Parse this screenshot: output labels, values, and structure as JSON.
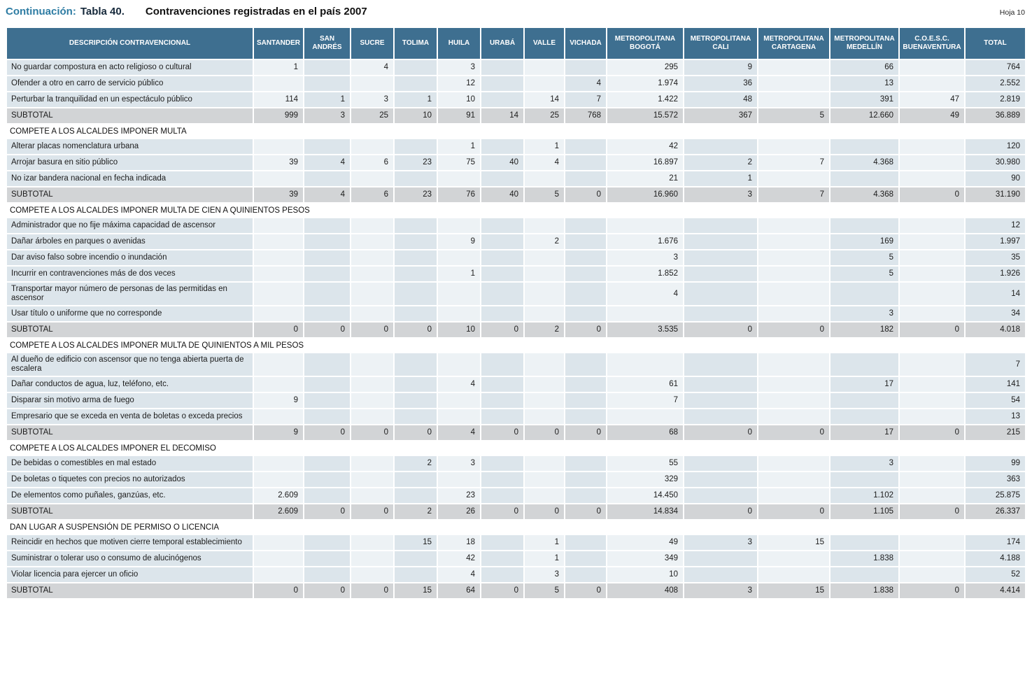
{
  "page": {
    "sheet_label": "Hoja 10"
  },
  "title": {
    "prefix": "Continuación:",
    "table_ref": "Tabla 40.",
    "text": "Contravenciones registradas en el país 2007"
  },
  "colors": {
    "header_bg": "#3e6f90",
    "col_light": "#edf2f5",
    "col_dark": "#dce5eb",
    "subtotal_bg": "#d2d4d6",
    "title_accent": "#2e7ca3"
  },
  "table": {
    "columns": [
      "DESCRIPCIÓN CONTRAVENCIONAL",
      "SANTANDER",
      "SAN ANDRÉS",
      "SUCRE",
      "TOLIMA",
      "HUILA",
      "URABÁ",
      "VALLE",
      "VICHADA",
      "METROPOLITANA BOGOTÁ",
      "METROPOLITANA CALI",
      "METROPOLITANA CARTAGENA",
      "METROPOLITANA MEDELLÍN",
      "C.O.E.S.C. BUENAVENTURA",
      "TOTAL"
    ],
    "sections": [
      {
        "title": "",
        "rows": [
          {
            "label": "No guardar compostura en acto religioso o cultural",
            "values": [
              "1",
              "",
              "4",
              "",
              "3",
              "",
              "",
              "",
              "295",
              "9",
              "",
              "66",
              "",
              "764"
            ]
          },
          {
            "label": "Ofender a otro en carro de servicio público",
            "values": [
              "",
              "",
              "",
              "",
              "12",
              "",
              "",
              "4",
              "1.974",
              "36",
              "",
              "13",
              "",
              "2.552"
            ]
          },
          {
            "label": "Perturbar la tranquilidad en un espectáculo público",
            "values": [
              "114",
              "1",
              "3",
              "1",
              "10",
              "",
              "14",
              "7",
              "1.422",
              "48",
              "",
              "391",
              "47",
              "2.819"
            ]
          },
          {
            "label": "SUBTOTAL",
            "subtotal": true,
            "values": [
              "999",
              "3",
              "25",
              "10",
              "91",
              "14",
              "25",
              "768",
              "15.572",
              "367",
              "5",
              "12.660",
              "49",
              "36.889"
            ]
          }
        ]
      },
      {
        "title": "COMPETE A LOS ALCALDES IMPONER MULTA",
        "rows": [
          {
            "label": "Alterar placas nomenclatura urbana",
            "values": [
              "",
              "",
              "",
              "",
              "1",
              "",
              "1",
              "",
              "42",
              "",
              "",
              "",
              "",
              "120"
            ]
          },
          {
            "label": "Arrojar basura en sitio público",
            "values": [
              "39",
              "4",
              "6",
              "23",
              "75",
              "40",
              "4",
              "",
              "16.897",
              "2",
              "7",
              "4.368",
              "",
              "30.980"
            ]
          },
          {
            "label": "No izar bandera nacional en fecha indicada",
            "values": [
              "",
              "",
              "",
              "",
              "",
              "",
              "",
              "",
              "21",
              "1",
              "",
              "",
              "",
              "90"
            ]
          },
          {
            "label": "SUBTOTAL",
            "subtotal": true,
            "values": [
              "39",
              "4",
              "6",
              "23",
              "76",
              "40",
              "5",
              "0",
              "16.960",
              "3",
              "7",
              "4.368",
              "0",
              "31.190"
            ]
          }
        ]
      },
      {
        "title": "COMPETE A LOS ALCALDES IMPONER MULTA DE CIEN A QUINIENTOS PESOS",
        "rows": [
          {
            "label": "Administrador que no fije máxima capacidad de ascensor",
            "values": [
              "",
              "",
              "",
              "",
              "",
              "",
              "",
              "",
              "",
              "",
              "",
              "",
              "",
              "12"
            ]
          },
          {
            "label": "Dañar árboles en parques o avenidas",
            "values": [
              "",
              "",
              "",
              "",
              "9",
              "",
              "2",
              "",
              "1.676",
              "",
              "",
              "169",
              "",
              "1.997"
            ]
          },
          {
            "label": "Dar aviso falso sobre incendio o inundación",
            "values": [
              "",
              "",
              "",
              "",
              "",
              "",
              "",
              "",
              "3",
              "",
              "",
              "5",
              "",
              "35"
            ]
          },
          {
            "label": "Incurrir en contravenciones más de dos veces",
            "values": [
              "",
              "",
              "",
              "",
              "1",
              "",
              "",
              "",
              "1.852",
              "",
              "",
              "5",
              "",
              "1.926"
            ]
          },
          {
            "label": "Transportar mayor número de personas de las permitidas en ascensor",
            "values": [
              "",
              "",
              "",
              "",
              "",
              "",
              "",
              "",
              "4",
              "",
              "",
              "",
              "",
              "14"
            ]
          },
          {
            "label": "Usar título o uniforme que no corresponde",
            "values": [
              "",
              "",
              "",
              "",
              "",
              "",
              "",
              "",
              "",
              "",
              "",
              "3",
              "",
              "34"
            ]
          },
          {
            "label": "SUBTOTAL",
            "subtotal": true,
            "values": [
              "0",
              "0",
              "0",
              "0",
              "10",
              "0",
              "2",
              "0",
              "3.535",
              "0",
              "0",
              "182",
              "0",
              "4.018"
            ]
          }
        ]
      },
      {
        "title": "COMPETE A LOS ALCALDES IMPONER MULTA DE QUINIENTOS A MIL PESOS",
        "rows": [
          {
            "label": "Al dueño de edificio con ascensor que no tenga abierta puerta de escalera",
            "values": [
              "",
              "",
              "",
              "",
              "",
              "",
              "",
              "",
              "",
              "",
              "",
              "",
              "",
              "7"
            ]
          },
          {
            "label": "Dañar conductos de agua, luz, teléfono, etc.",
            "values": [
              "",
              "",
              "",
              "",
              "4",
              "",
              "",
              "",
              "61",
              "",
              "",
              "17",
              "",
              "141"
            ]
          },
          {
            "label": "Disparar sin motivo arma de fuego",
            "values": [
              "9",
              "",
              "",
              "",
              "",
              "",
              "",
              "",
              "7",
              "",
              "",
              "",
              "",
              "54"
            ]
          },
          {
            "label": "Empresario que se exceda en venta de boletas o exceda precios",
            "values": [
              "",
              "",
              "",
              "",
              "",
              "",
              "",
              "",
              "",
              "",
              "",
              "",
              "",
              "13"
            ]
          },
          {
            "label": "SUBTOTAL",
            "subtotal": true,
            "values": [
              "9",
              "0",
              "0",
              "0",
              "4",
              "0",
              "0",
              "0",
              "68",
              "0",
              "0",
              "17",
              "0",
              "215"
            ]
          }
        ]
      },
      {
        "title": "COMPETE A LOS ALCALDES IMPONER EL DECOMISO",
        "rows": [
          {
            "label": "De bebidas o comestibles en mal estado",
            "values": [
              "",
              "",
              "",
              "2",
              "3",
              "",
              "",
              "",
              "55",
              "",
              "",
              "3",
              "",
              "99"
            ]
          },
          {
            "label": "De boletas o tiquetes con precios no autorizados",
            "values": [
              "",
              "",
              "",
              "",
              "",
              "",
              "",
              "",
              "329",
              "",
              "",
              "",
              "",
              "363"
            ]
          },
          {
            "label": "De elementos como puñales, ganzúas, etc.",
            "values": [
              "2.609",
              "",
              "",
              "",
              "23",
              "",
              "",
              "",
              "14.450",
              "",
              "",
              "1.102",
              "",
              "25.875"
            ]
          },
          {
            "label": "SUBTOTAL",
            "subtotal": true,
            "values": [
              "2.609",
              "0",
              "0",
              "2",
              "26",
              "0",
              "0",
              "0",
              "14.834",
              "0",
              "0",
              "1.105",
              "0",
              "26.337"
            ]
          }
        ]
      },
      {
        "title": "DAN LUGAR A SUSPENSIÓN DE PERMISO O LICENCIA",
        "rows": [
          {
            "label": "Reincidir en hechos que motiven cierre temporal establecimiento",
            "values": [
              "",
              "",
              "",
              "15",
              "18",
              "",
              "1",
              "",
              "49",
              "3",
              "15",
              "",
              "",
              "174"
            ]
          },
          {
            "label": "Suministrar o tolerar uso o consumo de alucinógenos",
            "values": [
              "",
              "",
              "",
              "",
              "42",
              "",
              "1",
              "",
              "349",
              "",
              "",
              "1.838",
              "",
              "4.188"
            ]
          },
          {
            "label": "Violar licencia para ejercer un oficio",
            "values": [
              "",
              "",
              "",
              "",
              "4",
              "",
              "3",
              "",
              "10",
              "",
              "",
              "",
              "",
              "52"
            ]
          },
          {
            "label": "SUBTOTAL",
            "subtotal": true,
            "values": [
              "0",
              "0",
              "0",
              "15",
              "64",
              "0",
              "5",
              "0",
              "408",
              "3",
              "15",
              "1.838",
              "0",
              "4.414"
            ]
          }
        ]
      }
    ]
  }
}
